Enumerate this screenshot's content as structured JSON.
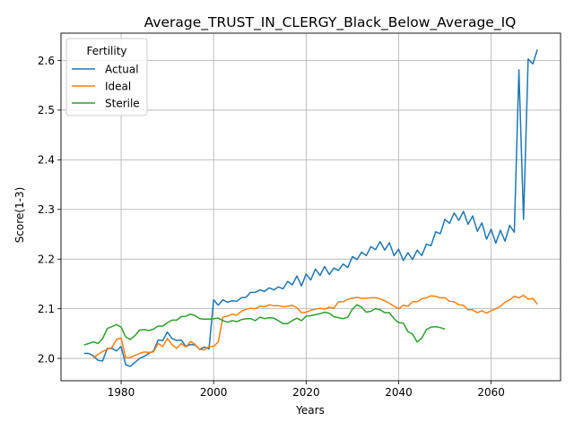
{
  "chart_data": {
    "type": "line",
    "title": "Average_TRUST_IN_CLERGY_Black_Below_Average_IQ",
    "xlabel": "Years",
    "ylabel": "Score(1-3)",
    "xlim": [
      1967,
      2075
    ],
    "ylim": [
      1.955,
      2.655
    ],
    "xticks": [
      1980,
      2000,
      2020,
      2040,
      2060
    ],
    "yticks": [
      2.0,
      2.1,
      2.2,
      2.3,
      2.4,
      2.5,
      2.6
    ],
    "ytick_labels": [
      "2.0",
      "2.1",
      "2.2",
      "2.3",
      "2.4",
      "2.5",
      "2.6"
    ],
    "grid": true,
    "legend": {
      "title": "Fertility",
      "position": "top-left"
    },
    "series": [
      {
        "name": "Actual",
        "color": "#1f77b4",
        "x": [
          1972,
          1973,
          1974,
          1975,
          1976,
          1977,
          1978,
          1979,
          1980,
          1981,
          1982,
          1983,
          1984,
          1985,
          1986,
          1987,
          1988,
          1989,
          1990,
          1991,
          1992,
          1993,
          1994,
          1995,
          1996,
          1997,
          1998,
          1999,
          2000,
          2001,
          2002,
          2003,
          2004,
          2005,
          2006,
          2007,
          2008,
          2009,
          2010,
          2011,
          2012,
          2013,
          2014,
          2015,
          2016,
          2017,
          2018,
          2019,
          2020,
          2021,
          2022,
          2023,
          2024,
          2025,
          2026,
          2027,
          2028,
          2029,
          2030,
          2031,
          2032,
          2033,
          2034,
          2035,
          2036,
          2037,
          2038,
          2039,
          2040,
          2041,
          2042,
          2043,
          2044,
          2045,
          2046,
          2047,
          2048,
          2049,
          2050,
          2051,
          2052,
          2053,
          2054,
          2055,
          2056,
          2057,
          2058,
          2059,
          2060,
          2061,
          2062,
          2063,
          2064,
          2065,
          2066,
          2067,
          2068,
          2069,
          2070
        ],
        "values": [
          2.01,
          2.01,
          2.005,
          1.996,
          1.995,
          2.02,
          2.02,
          2.015,
          2.024,
          1.987,
          1.984,
          1.992,
          2.0,
          2.004,
          2.01,
          2.015,
          2.037,
          2.036,
          2.053,
          2.04,
          2.036,
          2.037,
          2.024,
          2.028,
          2.027,
          2.018,
          2.023,
          2.019,
          2.118,
          2.107,
          2.118,
          2.113,
          2.116,
          2.115,
          2.122,
          2.123,
          2.133,
          2.133,
          2.138,
          2.135,
          2.142,
          2.138,
          2.144,
          2.14,
          2.155,
          2.148,
          2.166,
          2.146,
          2.17,
          2.158,
          2.18,
          2.167,
          2.185,
          2.169,
          2.182,
          2.177,
          2.19,
          2.183,
          2.205,
          2.199,
          2.214,
          2.207,
          2.225,
          2.219,
          2.235,
          2.218,
          2.233,
          2.207,
          2.22,
          2.197,
          2.213,
          2.199,
          2.218,
          2.207,
          2.23,
          2.227,
          2.255,
          2.251,
          2.28,
          2.272,
          2.293,
          2.278,
          2.296,
          2.27,
          2.287,
          2.256,
          2.273,
          2.24,
          2.26,
          2.232,
          2.258,
          2.236,
          2.268,
          2.254,
          2.581,
          2.28,
          2.603,
          2.593,
          2.622
        ]
      },
      {
        "name": "Ideal",
        "color": "#ff7f0e",
        "x": [
          1974,
          1975,
          1976,
          1977,
          1978,
          1979,
          1980,
          1981,
          1982,
          1983,
          1984,
          1985,
          1986,
          1987,
          1988,
          1989,
          1990,
          1991,
          1992,
          1993,
          1994,
          1995,
          1996,
          1997,
          1998,
          1999,
          2000,
          2001,
          2002,
          2003,
          2004,
          2005,
          2006,
          2007,
          2008,
          2009,
          2010,
          2011,
          2012,
          2013,
          2014,
          2015,
          2016,
          2017,
          2018,
          2019,
          2020,
          2021,
          2022,
          2023,
          2024,
          2025,
          2026,
          2027,
          2028,
          2029,
          2030,
          2031,
          2032,
          2033,
          2034,
          2035,
          2036,
          2037,
          2038,
          2039,
          2040,
          2041,
          2042,
          2043,
          2044,
          2045,
          2046,
          2047,
          2048,
          2049,
          2050,
          2051,
          2052,
          2053,
          2054,
          2055,
          2056,
          2057,
          2058,
          2059,
          2060,
          2061,
          2062,
          2063,
          2064,
          2065,
          2066,
          2067,
          2068,
          2069,
          2070
        ],
        "values": [
          2.001,
          2.008,
          2.014,
          2.018,
          2.022,
          2.038,
          2.041,
          2.001,
          2.002,
          2.006,
          2.01,
          2.013,
          2.012,
          2.013,
          2.03,
          2.024,
          2.04,
          2.028,
          2.02,
          2.03,
          2.023,
          2.034,
          2.028,
          2.018,
          2.017,
          2.024,
          2.024,
          2.033,
          2.083,
          2.085,
          2.089,
          2.087,
          2.095,
          2.099,
          2.101,
          2.1,
          2.105,
          2.104,
          2.108,
          2.106,
          2.106,
          2.104,
          2.105,
          2.107,
          2.102,
          2.092,
          2.093,
          2.097,
          2.099,
          2.101,
          2.099,
          2.103,
          2.101,
          2.114,
          2.114,
          2.119,
          2.121,
          2.123,
          2.121,
          2.121,
          2.122,
          2.122,
          2.12,
          2.116,
          2.111,
          2.105,
          2.1,
          2.107,
          2.105,
          2.114,
          2.114,
          2.12,
          2.122,
          2.126,
          2.125,
          2.122,
          2.122,
          2.115,
          2.114,
          2.108,
          2.107,
          2.098,
          2.098,
          2.092,
          2.096,
          2.091,
          2.096,
          2.1,
          2.105,
          2.113,
          2.118,
          2.125,
          2.122,
          2.127,
          2.119,
          2.121,
          2.109
        ]
      },
      {
        "name": "Sterile",
        "color": "#2ca02c",
        "x": [
          1972,
          1973,
          1974,
          1975,
          1976,
          1977,
          1978,
          1979,
          1980,
          1981,
          1982,
          1983,
          1984,
          1985,
          1986,
          1987,
          1988,
          1989,
          1990,
          1991,
          1992,
          1993,
          1994,
          1995,
          1996,
          1997,
          1998,
          1999,
          2000,
          2001,
          2002,
          2003,
          2004,
          2005,
          2006,
          2007,
          2008,
          2009,
          2010,
          2011,
          2012,
          2013,
          2014,
          2015,
          2016,
          2017,
          2018,
          2019,
          2020,
          2021,
          2022,
          2023,
          2024,
          2025,
          2026,
          2027,
          2028,
          2029,
          2030,
          2031,
          2032,
          2033,
          2034,
          2035,
          2036,
          2037,
          2038,
          2039,
          2040,
          2041,
          2042,
          2043,
          2044,
          2045,
          2046,
          2047,
          2048,
          2049,
          2050
        ],
        "values": [
          2.027,
          2.03,
          2.033,
          2.03,
          2.04,
          2.06,
          2.064,
          2.068,
          2.063,
          2.043,
          2.038,
          2.046,
          2.057,
          2.058,
          2.056,
          2.059,
          2.065,
          2.065,
          2.072,
          2.077,
          2.077,
          2.084,
          2.085,
          2.089,
          2.086,
          2.08,
          2.079,
          2.079,
          2.08,
          2.081,
          2.076,
          2.073,
          2.076,
          2.074,
          2.078,
          2.08,
          2.08,
          2.076,
          2.083,
          2.08,
          2.082,
          2.081,
          2.076,
          2.07,
          2.07,
          2.076,
          2.081,
          2.076,
          2.085,
          2.086,
          2.088,
          2.09,
          2.093,
          2.091,
          2.084,
          2.082,
          2.08,
          2.083,
          2.099,
          2.108,
          2.103,
          2.093,
          2.095,
          2.1,
          2.098,
          2.092,
          2.092,
          2.08,
          2.072,
          2.071,
          2.054,
          2.049,
          2.033,
          2.041,
          2.058,
          2.063,
          2.064,
          2.062,
          2.059
        ]
      }
    ]
  }
}
